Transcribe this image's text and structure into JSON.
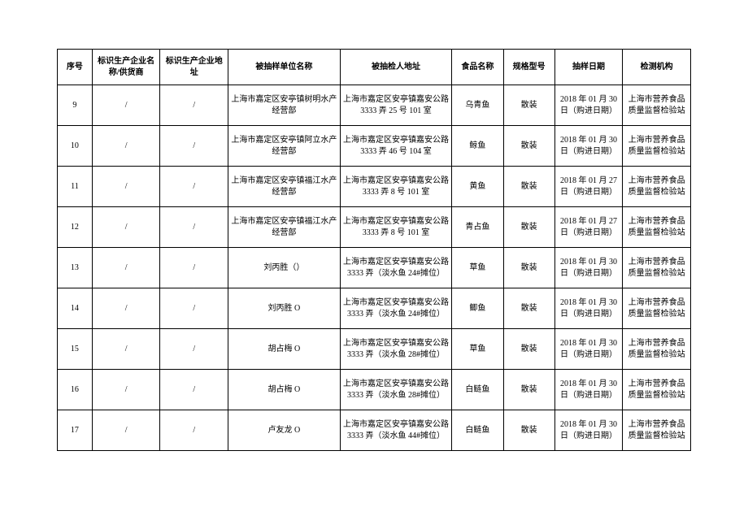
{
  "columns": [
    {
      "label": "序号",
      "cls": "col-seq"
    },
    {
      "label": "标识生产企业名称/供货商",
      "cls": "col-supplier"
    },
    {
      "label": "标识生产企业地址",
      "cls": "col-addr"
    },
    {
      "label": "被抽样单位名称",
      "cls": "col-sample-unit"
    },
    {
      "label": "被抽检人地址",
      "cls": "col-sample-addr"
    },
    {
      "label": "食品名称",
      "cls": "col-food"
    },
    {
      "label": "规格型号",
      "cls": "col-spec"
    },
    {
      "label": "抽样日期",
      "cls": "col-date"
    },
    {
      "label": "检测机构",
      "cls": "col-org"
    }
  ],
  "rows": [
    [
      "9",
      "/",
      "/",
      "上海市嘉定区安亭镇树明水产经营部",
      "上海市嘉定区安亭镇嘉安公路 3333 弄 25 号 101 室",
      "乌青鱼",
      "散装",
      "2018 年 01 月 30 日（购进日期）",
      "上海市营养食品质量监督检验站"
    ],
    [
      "10",
      "/",
      "/",
      "上海市嘉定区安亭镇阿立水产经营部",
      "上海市嘉定区安亭镇嘉安公路 3333 弄 46 号 104 室",
      "鲸鱼",
      "散装",
      "2018 年 01 月 30 日（购进日期）",
      "上海市营养食品质量监督检验站"
    ],
    [
      "11",
      "/",
      "/",
      "上海市嘉定区安亭镇福江水产经营部",
      "上海市嘉定区安亭镇嘉安公路 3333 弄 8 号 101 室",
      "黄鱼",
      "散装",
      "2018 年 01 月 27 日（购进日期）",
      "上海市营养食品质量监督检验站"
    ],
    [
      "12",
      "/",
      "/",
      "上海市嘉定区安亭镇福江水产经营部",
      "上海市嘉定区安亭镇嘉安公路 3333 弄 8 号 101 室",
      "青占鱼",
      "散装",
      "2018 年 01 月 27 日（购进日期）",
      "上海市营养食品质量监督检验站"
    ],
    [
      "13",
      "/",
      "/",
      "刘丙胜（）",
      "上海市嘉定区安亭镇嘉安公路 3333 弄（淡水鱼 24#摊位）",
      "草鱼",
      "散装",
      "2018 年 01 月 30 日（购进日期）",
      "上海市营养食品质量监督检验站"
    ],
    [
      "14",
      "/",
      "/",
      "刘丙胜 O",
      "上海市嘉定区安亭镇嘉安公路 3333 弄（淡水鱼 24#摊位）",
      "鲫鱼",
      "散装",
      "2018 年 01 月 30 日（购进日期）",
      "上海市营养食品质量监督检验站"
    ],
    [
      "15",
      "/",
      "/",
      "胡占梅 O",
      "上海市嘉定区安亭镇嘉安公路 3333 弄（淡水鱼 28#摊位）",
      "草鱼",
      "散装",
      "2018 年 01 月 30 日（购进日期）",
      "上海市营养食品质量监督检验站"
    ],
    [
      "16",
      "/",
      "/",
      "胡占梅 O",
      "上海市嘉定区安亭镇嘉安公路 3333 弄（淡水鱼 28#摊位）",
      "白鲢鱼",
      "散装",
      "2018 年 01 月 30 日（购进日期）",
      "上海市营养食品质量监督检验站"
    ],
    [
      "17",
      "/",
      "/",
      "卢友龙 O",
      "上海市嘉定区安亭镇嘉安公路 3333 弄（淡水鱼 44#摊位）",
      "白鲢鱼",
      "散装",
      "2018 年 01 月 30 日（购进日期）",
      "上海市营养食品质量监督检验站"
    ]
  ]
}
